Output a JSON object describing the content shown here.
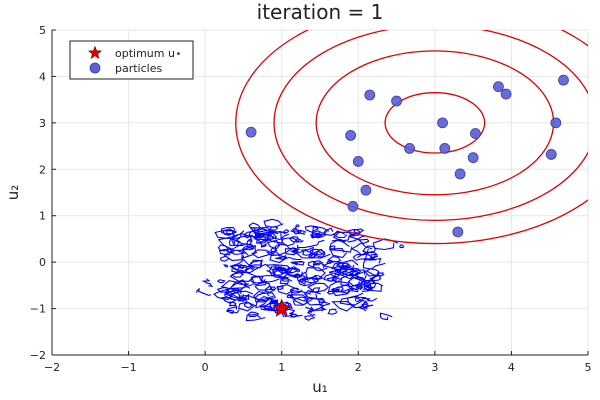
{
  "chart_data": {
    "type": "scatter",
    "title": "iteration = 1",
    "xlabel": "u₁",
    "ylabel": "u₂",
    "xlim": [
      -2,
      5
    ],
    "ylim": [
      -2,
      5
    ],
    "xticks": [
      -2,
      -1,
      0,
      1,
      2,
      3,
      4,
      5
    ],
    "yticks": [
      -2,
      -1,
      0,
      1,
      2,
      3,
      4,
      5
    ],
    "grid": true,
    "legend": {
      "position": "top-left",
      "entries": [
        {
          "label": "optimum u⋆",
          "marker": "star",
          "color": "#e00000"
        },
        {
          "label": "particles",
          "marker": "circle",
          "color": "#5b5fd9"
        }
      ]
    },
    "colors": {
      "optimum": "#e00000",
      "particles": "#5b5fd9",
      "posterior_contour": "#e00000",
      "cost_contour": "#0000ff"
    },
    "series": [
      {
        "name": "optimum u⋆",
        "marker": "star",
        "x": [
          1.0
        ],
        "y": [
          -1.0
        ]
      },
      {
        "name": "particles",
        "marker": "circle",
        "x": [
          0.6,
          2.15,
          2.5,
          3.1,
          3.83,
          3.93,
          4.68,
          4.58,
          1.9,
          3.53,
          2.67,
          3.13,
          2.0,
          3.5,
          3.33,
          4.52,
          2.1,
          1.93,
          3.3
        ],
        "y": [
          2.8,
          3.6,
          3.47,
          3.0,
          3.78,
          3.62,
          3.92,
          3.0,
          2.73,
          2.77,
          2.45,
          2.45,
          2.17,
          2.25,
          1.9,
          2.32,
          1.55,
          1.2,
          0.65
        ]
      }
    ],
    "contours": {
      "red": {
        "center": [
          3.0,
          3.0
        ],
        "radii": [
          [
            0.65,
            0.65
          ],
          [
            1.55,
            1.55
          ],
          [
            2.1,
            2.1
          ],
          [
            2.6,
            2.6
          ]
        ]
      },
      "blue": {
        "center": [
          1.0,
          -0.2
        ],
        "extent": [
          [
            0.2,
            2.6
          ],
          [
            -1.2,
            0.9
          ]
        ],
        "note": "noisy contour lines"
      }
    }
  }
}
